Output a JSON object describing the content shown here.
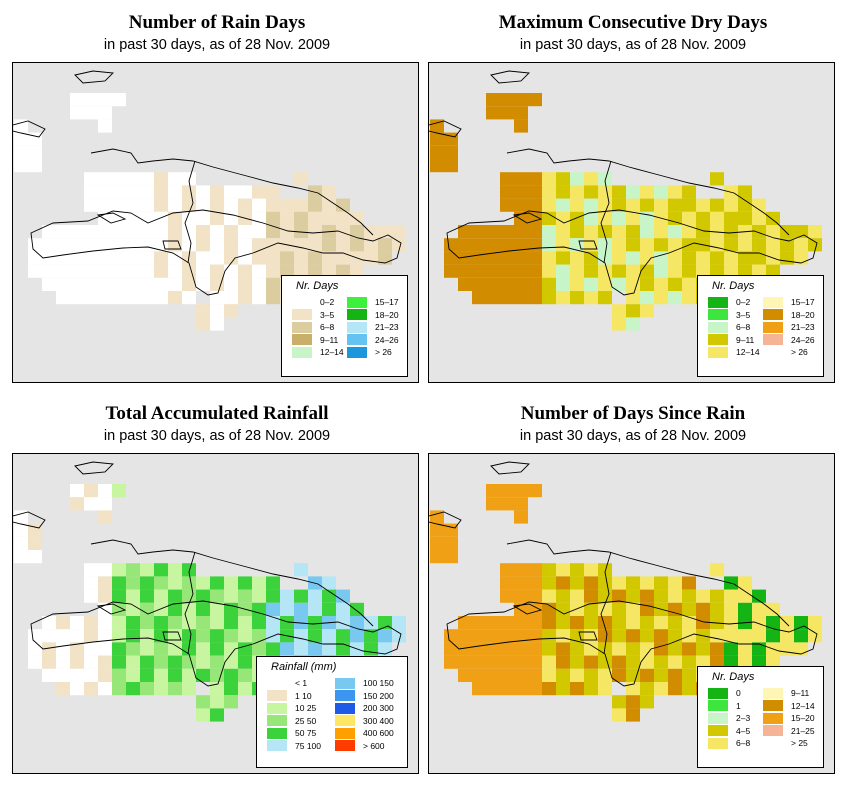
{
  "panels": [
    {
      "title": "Number of Rain Days",
      "subtitle": "in past 30 days, as of  28 Nov. 2009",
      "legend": {
        "title": "Nr. Days",
        "items": [
          {
            "label": "0–2",
            "color": "#ffffff"
          },
          {
            "label": "3–5",
            "color": "#f2e3c7"
          },
          {
            "label": "6–8",
            "color": "#dccda0"
          },
          {
            "label": "9–11",
            "color": "#c8b06a"
          },
          {
            "label": "12–14",
            "color": "#c8f5c8"
          },
          {
            "label": "15–17",
            "color": "#3cf03c"
          },
          {
            "label": "18–20",
            "color": "#14b414"
          },
          {
            "label": "21–23",
            "color": "#b4e6f5"
          },
          {
            "label": "24–26",
            "color": "#64c3f0"
          },
          {
            "label": "> 26",
            "color": "#1e96dc"
          }
        ]
      }
    },
    {
      "title": "Maximum Consecutive Dry Days",
      "subtitle": "in past 30 days, as of  28 Nov. 2009",
      "legend": {
        "title": "Nr. Days",
        "items": [
          {
            "label": "0–2",
            "color": "#14b414"
          },
          {
            "label": "3–5",
            "color": "#3ce63c"
          },
          {
            "label": "6–8",
            "color": "#c8f5c8"
          },
          {
            "label": "9–11",
            "color": "#d2c800"
          },
          {
            "label": "12–14",
            "color": "#f5e664"
          },
          {
            "label": "15–17",
            "color": "#fff5b4"
          },
          {
            "label": "18–20",
            "color": "#d28c00"
          },
          {
            "label": "21–23",
            "color": "#f0a014"
          },
          {
            "label": "24–26",
            "color": "#f5b496"
          },
          {
            "label": "> 26",
            "color": "#ffffff"
          }
        ]
      }
    },
    {
      "title": "Total Accumulated Rainfall",
      "subtitle": "in past 30 days, as of  28 Nov. 2009",
      "legend": {
        "title": "Rainfall (mm)",
        "items": [
          {
            "label": "< 1",
            "color": "#ffffff"
          },
          {
            "label": "1    10",
            "color": "#f2e3c7"
          },
          {
            "label": "10    25",
            "color": "#c8f5a0"
          },
          {
            "label": "25    50",
            "color": "#96e678"
          },
          {
            "label": "50    75",
            "color": "#3cd23c"
          },
          {
            "label": "75   100",
            "color": "#b4e6f5"
          },
          {
            "label": "100   150",
            "color": "#78c8f0"
          },
          {
            "label": "150   200",
            "color": "#3c96f0"
          },
          {
            "label": "200   300",
            "color": "#1e5ae6"
          },
          {
            "label": "300   400",
            "color": "#ffe664"
          },
          {
            "label": "400   600",
            "color": "#ffa000"
          },
          {
            "label": "> 600",
            "color": "#ff3c00"
          }
        ]
      }
    },
    {
      "title": "Number of Days Since Rain",
      "subtitle": "in past 30 days, as of  28 Nov. 2009",
      "legend": {
        "title": "Nr. Days",
        "items": [
          {
            "label": "0",
            "color": "#14b414"
          },
          {
            "label": "1",
            "color": "#3ce63c"
          },
          {
            "label": "2–3",
            "color": "#c8f5c8"
          },
          {
            "label": "4–5",
            "color": "#d2c800"
          },
          {
            "label": "6–8",
            "color": "#f5e664"
          },
          {
            "label": "9–11",
            "color": "#fff5b4"
          },
          {
            "label": "12–14",
            "color": "#d28c00"
          },
          {
            "label": "15–20",
            "color": "#f0a014"
          },
          {
            "label": "21–25",
            "color": "#f5b496"
          },
          {
            "label": "> 25",
            "color": "#ffffff"
          }
        ]
      }
    }
  ]
}
